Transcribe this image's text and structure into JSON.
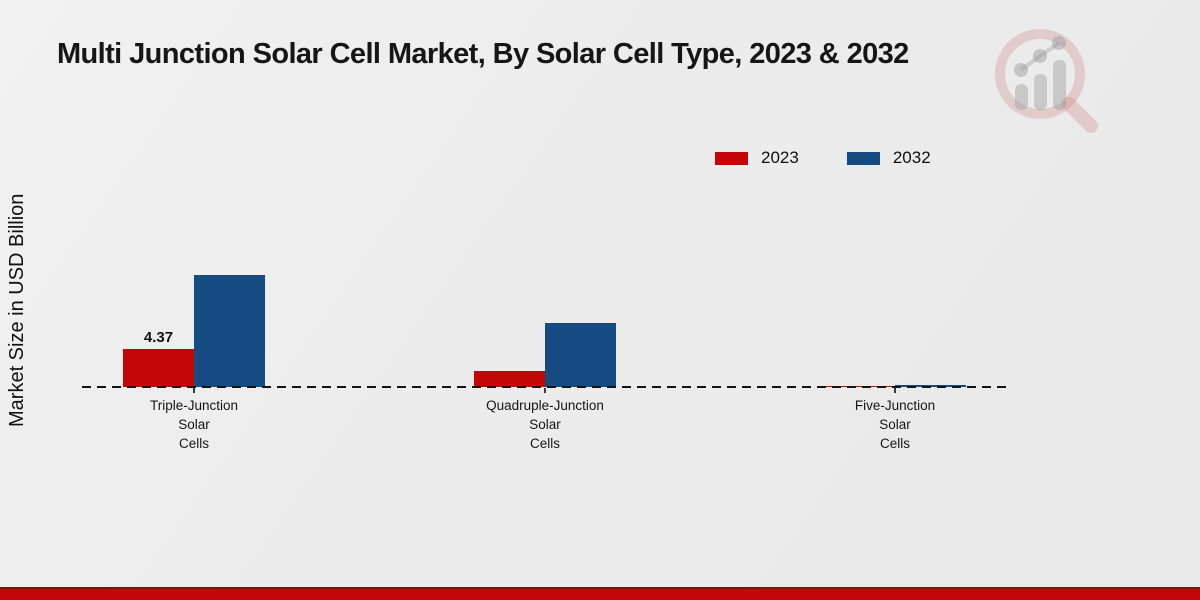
{
  "title": "Multi Junction Solar Cell Market, By Solar Cell Type, 2023 & 2032",
  "y_axis_label": "Market Size in USD Billion",
  "legend": [
    {
      "label": "2023",
      "color": "#c50606"
    },
    {
      "label": "2032",
      "color": "#154b80"
    }
  ],
  "colors": {
    "series_2023": "#c50606",
    "series_2032": "#154b80",
    "bottom_strip": "#c50606",
    "background": "#ececec",
    "baseline": "#141414"
  },
  "chart_data": {
    "type": "bar",
    "title": "Multi Junction Solar Cell Market, By Solar Cell Type, 2023 & 2032",
    "xlabel": "",
    "ylabel": "Market Size in USD Billion",
    "categories": [
      "Triple-Junction Solar Cells",
      "Quadruple-Junction Solar Cells",
      "Five-Junction Solar Cells"
    ],
    "series": [
      {
        "name": "2023",
        "color": "#c50606",
        "values": [
          4.37,
          1.8,
          0.1
        ]
      },
      {
        "name": "2032",
        "color": "#154b80",
        "values": [
          12.7,
          7.3,
          0.2
        ]
      }
    ],
    "data_labels": [
      {
        "series_index": 0,
        "category_index": 0,
        "text": "4.37"
      }
    ],
    "ylim": [
      0,
      14
    ],
    "grid": false,
    "baseline_style": "dashed",
    "legend_position": "top-right"
  }
}
